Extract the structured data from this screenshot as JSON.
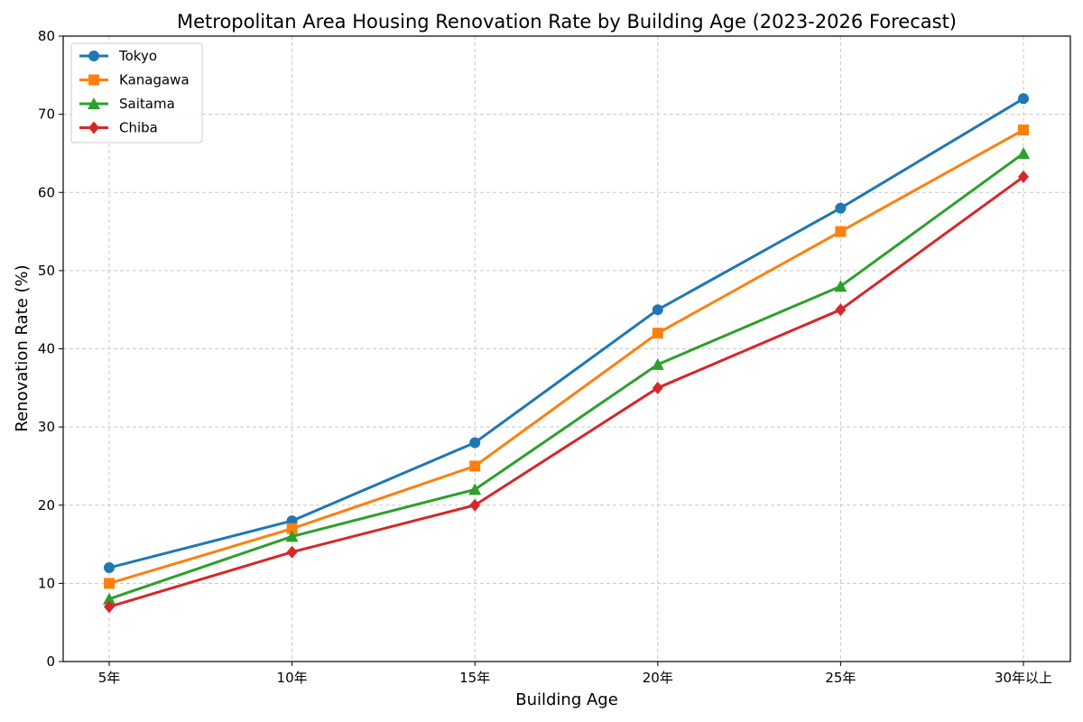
{
  "chart_data": {
    "type": "line",
    "title": "Metropolitan Area Housing Renovation Rate by Building Age (2023-2026 Forecast)",
    "xlabel": "Building Age",
    "ylabel": "Renovation Rate (%)",
    "categories": [
      "5年",
      "10年",
      "15年",
      "20年",
      "25年",
      "30年以上"
    ],
    "ylim": [
      0,
      80
    ],
    "yticks": [
      0,
      10,
      20,
      30,
      40,
      50,
      60,
      70,
      80
    ],
    "grid": true,
    "legend_position": "top-left",
    "series": [
      {
        "name": "Tokyo",
        "values": [
          12,
          18,
          28,
          45,
          58,
          72
        ],
        "color": "#1f77b4",
        "marker": "circle"
      },
      {
        "name": "Kanagawa",
        "values": [
          10,
          17,
          25,
          42,
          55,
          68
        ],
        "color": "#ff7f0e",
        "marker": "square"
      },
      {
        "name": "Saitama",
        "values": [
          8,
          16,
          22,
          38,
          48,
          65
        ],
        "color": "#2ca02c",
        "marker": "triangle"
      },
      {
        "name": "Chiba",
        "values": [
          7,
          14,
          20,
          35,
          45,
          62
        ],
        "color": "#d62728",
        "marker": "diamond"
      }
    ]
  }
}
